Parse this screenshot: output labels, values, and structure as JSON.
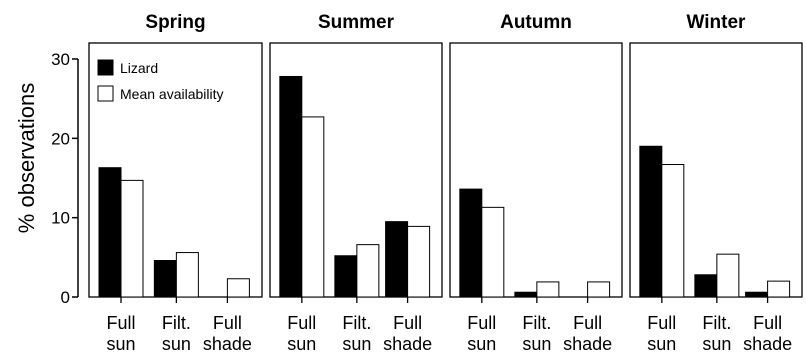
{
  "chart_data": {
    "type": "bar",
    "ylabel": "% observations",
    "ylim": [
      0,
      30
    ],
    "yticks": [
      0,
      10,
      20,
      30
    ],
    "categories": [
      [
        "Full",
        "sun"
      ],
      [
        "Filt.",
        "sun"
      ],
      [
        "Full",
        "shade"
      ]
    ],
    "legend": {
      "placement": "top-left of first panel",
      "entries": [
        {
          "name": "Lizard",
          "color": "#000000"
        },
        {
          "name": "Mean availability",
          "color": "#ffffff"
        }
      ]
    },
    "panels": [
      {
        "title": "Spring",
        "series": [
          {
            "name": "Lizard",
            "values": [
              16.3,
              4.6,
              0
            ]
          },
          {
            "name": "Mean availability",
            "values": [
              14.7,
              5.6,
              2.3
            ]
          }
        ]
      },
      {
        "title": "Summer",
        "series": [
          {
            "name": "Lizard",
            "values": [
              27.8,
              5.2,
              9.5
            ]
          },
          {
            "name": "Mean availability",
            "values": [
              22.7,
              6.6,
              8.9
            ]
          }
        ]
      },
      {
        "title": "Autumn",
        "series": [
          {
            "name": "Lizard",
            "values": [
              13.6,
              0.6,
              0
            ]
          },
          {
            "name": "Mean availability",
            "values": [
              11.3,
              1.9,
              1.9
            ]
          }
        ]
      },
      {
        "title": "Winter",
        "series": [
          {
            "name": "Lizard",
            "values": [
              19.0,
              2.8,
              0.6
            ]
          },
          {
            "name": "Mean availability",
            "values": [
              16.7,
              5.4,
              2.0
            ]
          }
        ]
      }
    ],
    "colors": {
      "lizard": "#000000",
      "availability": "#ffffff",
      "axis": "#000000"
    }
  }
}
